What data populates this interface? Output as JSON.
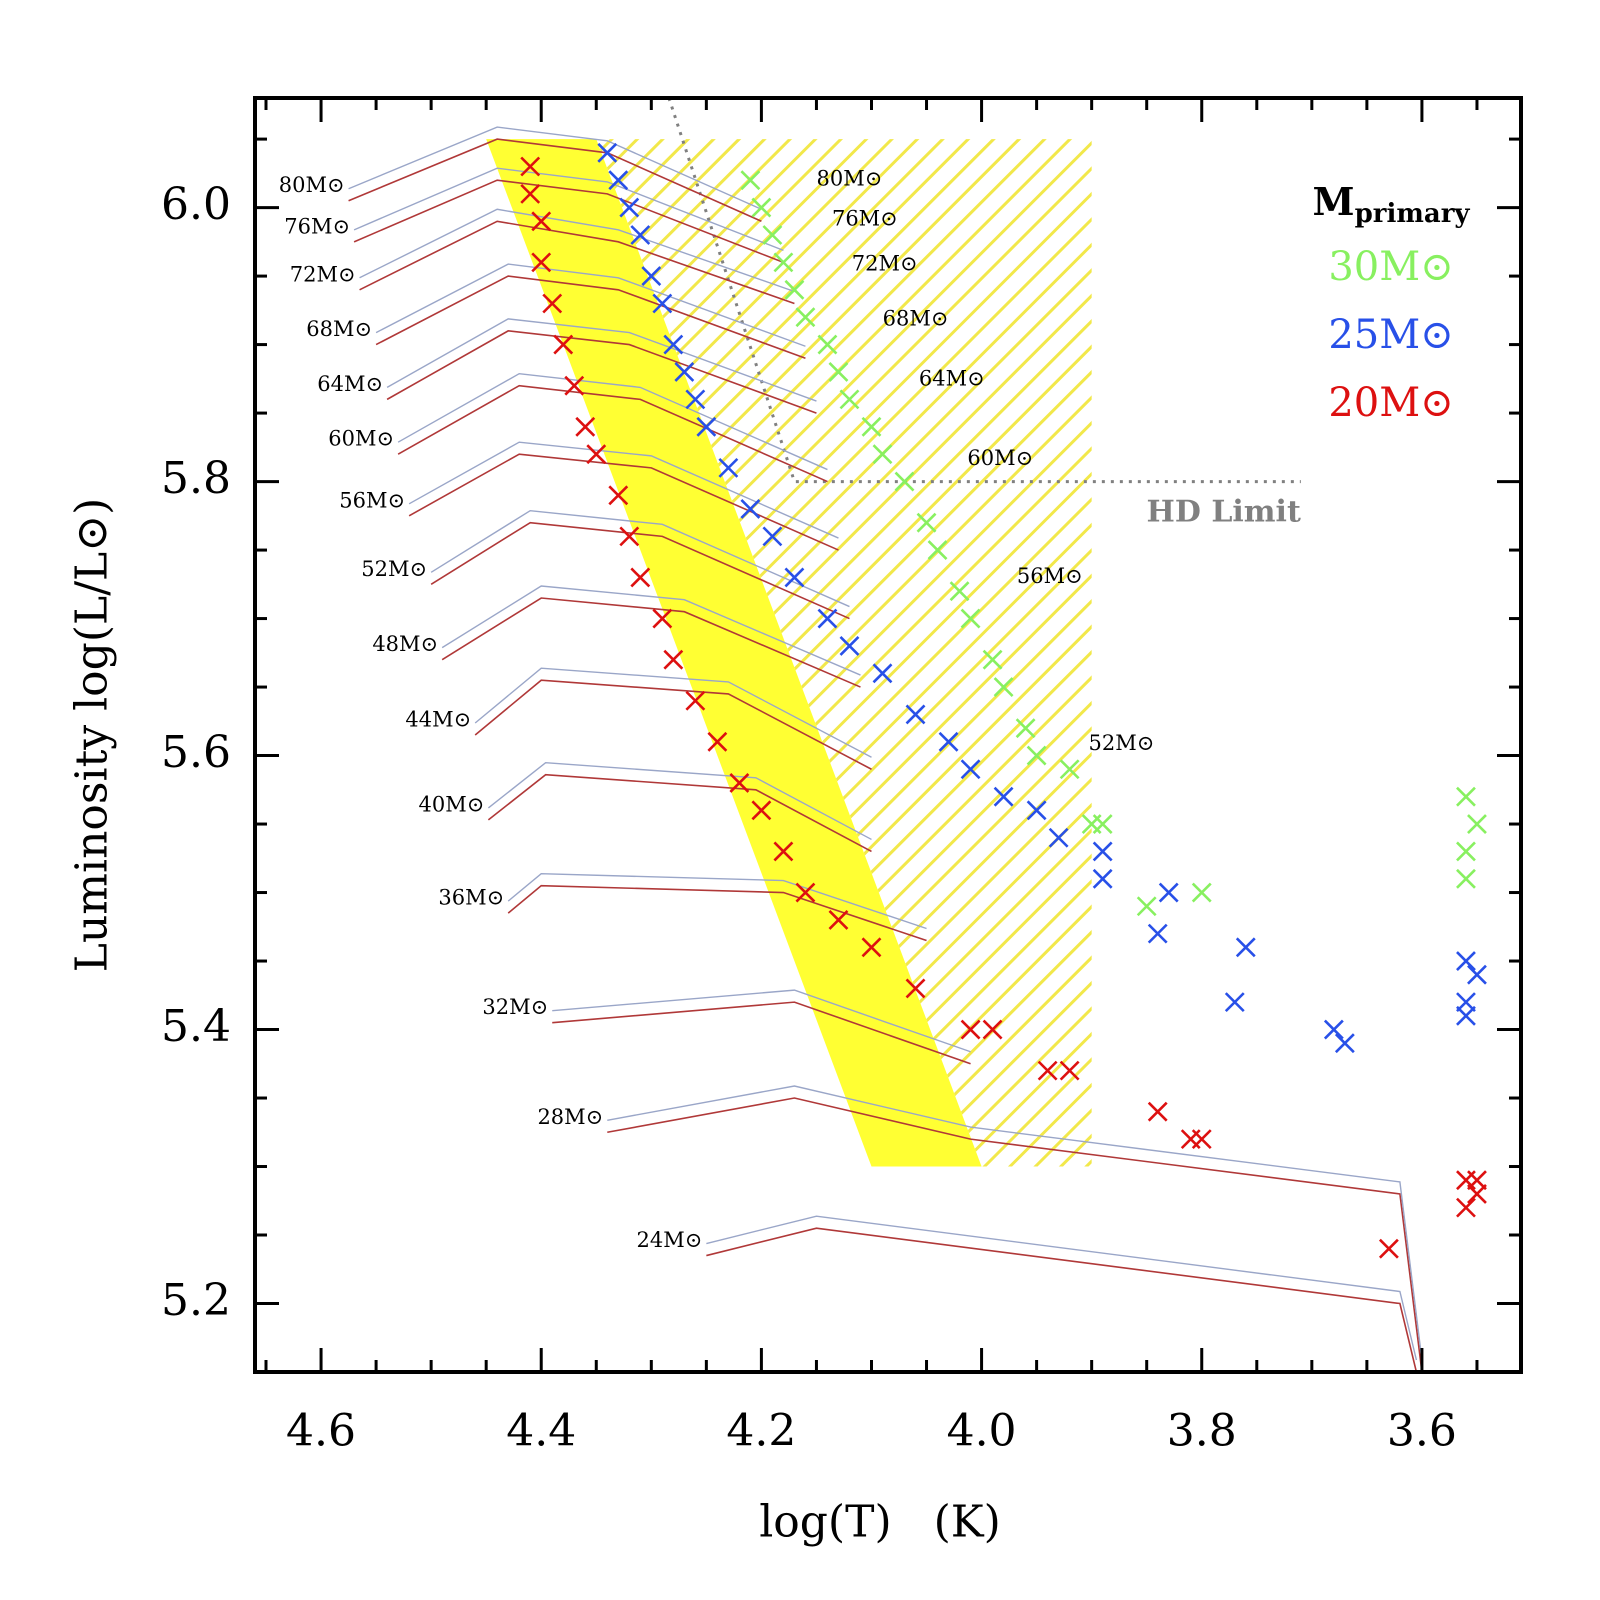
{
  "chart_data": {
    "type": "scatter",
    "xlabel": "log(T)   (K)",
    "ylabel": "Luminosity log(L/L⊙)",
    "xlim": [
      4.66,
      3.51
    ],
    "ylim": [
      5.15,
      6.08
    ],
    "xticks": [
      4.6,
      4.4,
      4.2,
      {
        "value": 4,
        "label": "4.0"
      },
      3.8,
      3.6
    ],
    "yticks": [
      5.2,
      5.4,
      5.6,
      5.8,
      {
        "value": 6,
        "label": "6.0"
      }
    ],
    "xminorticks": [
      4.65,
      4.55,
      4.5,
      4.45,
      4.35,
      4.3,
      4.25,
      4.15,
      4.1,
      4.05,
      3.95,
      3.9,
      3.85,
      3.75,
      3.7,
      3.65,
      3.55
    ],
    "yminorticks": [
      5.15,
      5.25,
      5.3,
      5.35,
      5.45,
      5.5,
      5.55,
      5.65,
      5.7,
      5.75,
      5.85,
      5.9,
      5.95,
      6.05
    ],
    "legend": "top-right",
    "legend_title": "M",
    "legend_title_sub": "primary",
    "series": [
      {
        "name": "30M⊙",
        "color": "#88f060",
        "x": [
          4.21,
          4.2,
          4.19,
          4.18,
          4.17,
          4.16,
          4.14,
          4.13,
          4.12,
          4.1,
          4.09,
          4.07,
          4.05,
          4.04,
          4.02,
          4.01,
          3.99,
          3.98,
          3.96,
          3.95,
          3.92,
          3.9,
          3.89,
          3.85,
          3.8,
          3.56,
          3.56,
          3.55,
          3.56
        ],
        "values": [
          6.02,
          6.0,
          5.98,
          5.96,
          5.94,
          5.92,
          5.9,
          5.88,
          5.86,
          5.84,
          5.82,
          5.8,
          5.77,
          5.75,
          5.72,
          5.7,
          5.67,
          5.65,
          5.62,
          5.6,
          5.59,
          5.55,
          5.55,
          5.49,
          5.5,
          5.51,
          5.53,
          5.55,
          5.57
        ]
      },
      {
        "name": "25M⊙",
        "color": "#2850e8",
        "x": [
          4.34,
          4.33,
          4.32,
          4.31,
          4.3,
          4.29,
          4.28,
          4.27,
          4.26,
          4.25,
          4.23,
          4.21,
          4.19,
          4.17,
          4.14,
          4.12,
          4.09,
          4.06,
          4.03,
          4.01,
          3.98,
          3.95,
          3.93,
          3.89,
          3.89,
          3.83,
          3.84,
          3.76,
          3.77,
          3.68,
          3.67,
          3.56,
          3.56,
          3.55,
          3.56
        ],
        "values": [
          6.04,
          6.02,
          6.0,
          5.98,
          5.95,
          5.93,
          5.9,
          5.88,
          5.86,
          5.84,
          5.81,
          5.78,
          5.76,
          5.73,
          5.7,
          5.68,
          5.66,
          5.63,
          5.61,
          5.59,
          5.57,
          5.56,
          5.54,
          5.53,
          5.51,
          5.5,
          5.47,
          5.46,
          5.42,
          5.4,
          5.39,
          5.41,
          5.42,
          5.44,
          5.45
        ]
      },
      {
        "name": "20M⊙",
        "color": "#dd1010",
        "x": [
          4.41,
          4.41,
          4.4,
          4.4,
          4.39,
          4.38,
          4.37,
          4.36,
          4.35,
          4.33,
          4.32,
          4.31,
          4.29,
          4.28,
          4.26,
          4.24,
          4.22,
          4.2,
          4.18,
          4.16,
          4.13,
          4.1,
          4.06,
          4.01,
          3.99,
          3.94,
          3.92,
          3.84,
          3.81,
          3.8,
          3.63,
          3.56,
          3.55,
          3.56,
          3.55
        ],
        "values": [
          6.03,
          6.01,
          5.99,
          5.96,
          5.93,
          5.9,
          5.87,
          5.84,
          5.82,
          5.79,
          5.76,
          5.73,
          5.7,
          5.67,
          5.64,
          5.61,
          5.58,
          5.56,
          5.53,
          5.5,
          5.48,
          5.46,
          5.43,
          5.4,
          5.4,
          5.37,
          5.37,
          5.34,
          5.32,
          5.32,
          5.24,
          5.27,
          5.28,
          5.29,
          5.29
        ]
      }
    ],
    "tracks_color": "#b03838",
    "tracks": [
      {
        "label": "80M⊙",
        "x": [
          4.575,
          4.44,
          4.34,
          4.2
        ],
        "y": [
          6.005,
          6.05,
          6.04,
          5.99
        ]
      },
      {
        "label": "76M⊙",
        "x": [
          4.57,
          4.44,
          4.34,
          4.18
        ],
        "y": [
          5.975,
          6.02,
          6.01,
          5.96
        ]
      },
      {
        "label": "72M⊙",
        "x": [
          4.565,
          4.44,
          4.33,
          4.17
        ],
        "y": [
          5.94,
          5.99,
          5.975,
          5.93
        ]
      },
      {
        "label": "68M⊙",
        "x": [
          4.55,
          4.43,
          4.33,
          4.16
        ],
        "y": [
          5.9,
          5.95,
          5.94,
          5.89
        ]
      },
      {
        "label": "64M⊙",
        "x": [
          4.54,
          4.43,
          4.32,
          4.15
        ],
        "y": [
          5.86,
          5.91,
          5.9,
          5.85
        ]
      },
      {
        "label": "60M⊙",
        "x": [
          4.53,
          4.42,
          4.31,
          4.14
        ],
        "y": [
          5.82,
          5.87,
          5.86,
          5.8
        ]
      },
      {
        "label": "56M⊙",
        "x": [
          4.52,
          4.42,
          4.3,
          4.13
        ],
        "y": [
          5.775,
          5.82,
          5.81,
          5.75
        ]
      },
      {
        "label": "52M⊙",
        "x": [
          4.5,
          4.41,
          4.29,
          4.12
        ],
        "y": [
          5.725,
          5.77,
          5.76,
          5.7
        ]
      },
      {
        "label": "48M⊙",
        "x": [
          4.49,
          4.4,
          4.27,
          4.11
        ],
        "y": [
          5.67,
          5.715,
          5.705,
          5.65
        ]
      },
      {
        "label": "44M⊙",
        "x": [
          4.46,
          4.4,
          4.23,
          4.1
        ],
        "y": [
          5.615,
          5.655,
          5.645,
          5.59
        ]
      },
      {
        "label": "40M⊙",
        "x": [
          4.448,
          4.396,
          4.205,
          4.1
        ],
        "y": [
          5.553,
          5.586,
          5.575,
          5.53
        ]
      },
      {
        "label": "36M⊙",
        "x": [
          4.43,
          4.4,
          4.18,
          4.05
        ],
        "y": [
          5.485,
          5.505,
          5.5,
          5.465
        ]
      },
      {
        "label": "32M⊙",
        "x": [
          4.39,
          4.17,
          4.01
        ],
        "y": [
          5.405,
          5.42,
          5.375
        ]
      },
      {
        "label": "28M⊙",
        "x": [
          4.34,
          4.17,
          4.01,
          3.62,
          3.6
        ],
        "y": [
          5.325,
          5.35,
          5.32,
          5.28,
          5.15
        ]
      },
      {
        "label": "24M⊙",
        "x": [
          4.25,
          4.15,
          3.62,
          3.605
        ],
        "y": [
          5.235,
          5.255,
          5.2,
          5.15
        ]
      }
    ],
    "annotations": [
      {
        "text": "80M⊙",
        "x": 4.12,
        "y": 6.02
      },
      {
        "text": "76M⊙",
        "x": 4.106,
        "y": 5.991
      },
      {
        "text": "72M⊙",
        "x": 4.088,
        "y": 5.958
      },
      {
        "text": "68M⊙",
        "x": 4.06,
        "y": 5.918
      },
      {
        "text": "64M⊙",
        "x": 4.027,
        "y": 5.874
      },
      {
        "text": "60M⊙",
        "x": 3.983,
        "y": 5.816
      },
      {
        "text": "56M⊙",
        "x": 3.938,
        "y": 5.73
      },
      {
        "text": "52M⊙",
        "x": 3.873,
        "y": 5.608
      }
    ],
    "band": {
      "color": "#ffff33",
      "x": [
        4.45,
        4.35,
        4.0,
        4.1
      ],
      "y": [
        6.05,
        6.05,
        5.3,
        5.3
      ]
    },
    "hatch": {
      "color": "#f2e84a",
      "x": [
        4.35,
        3.9,
        3.9,
        4.0
      ],
      "y": [
        6.05,
        6.05,
        5.3,
        5.3
      ]
    },
    "hd_limit": {
      "label": "HD Limit",
      "color": "#808080",
      "x": [
        4.284,
        4.17,
        3.71
      ],
      "y": [
        6.08,
        5.8,
        5.8
      ]
    }
  }
}
